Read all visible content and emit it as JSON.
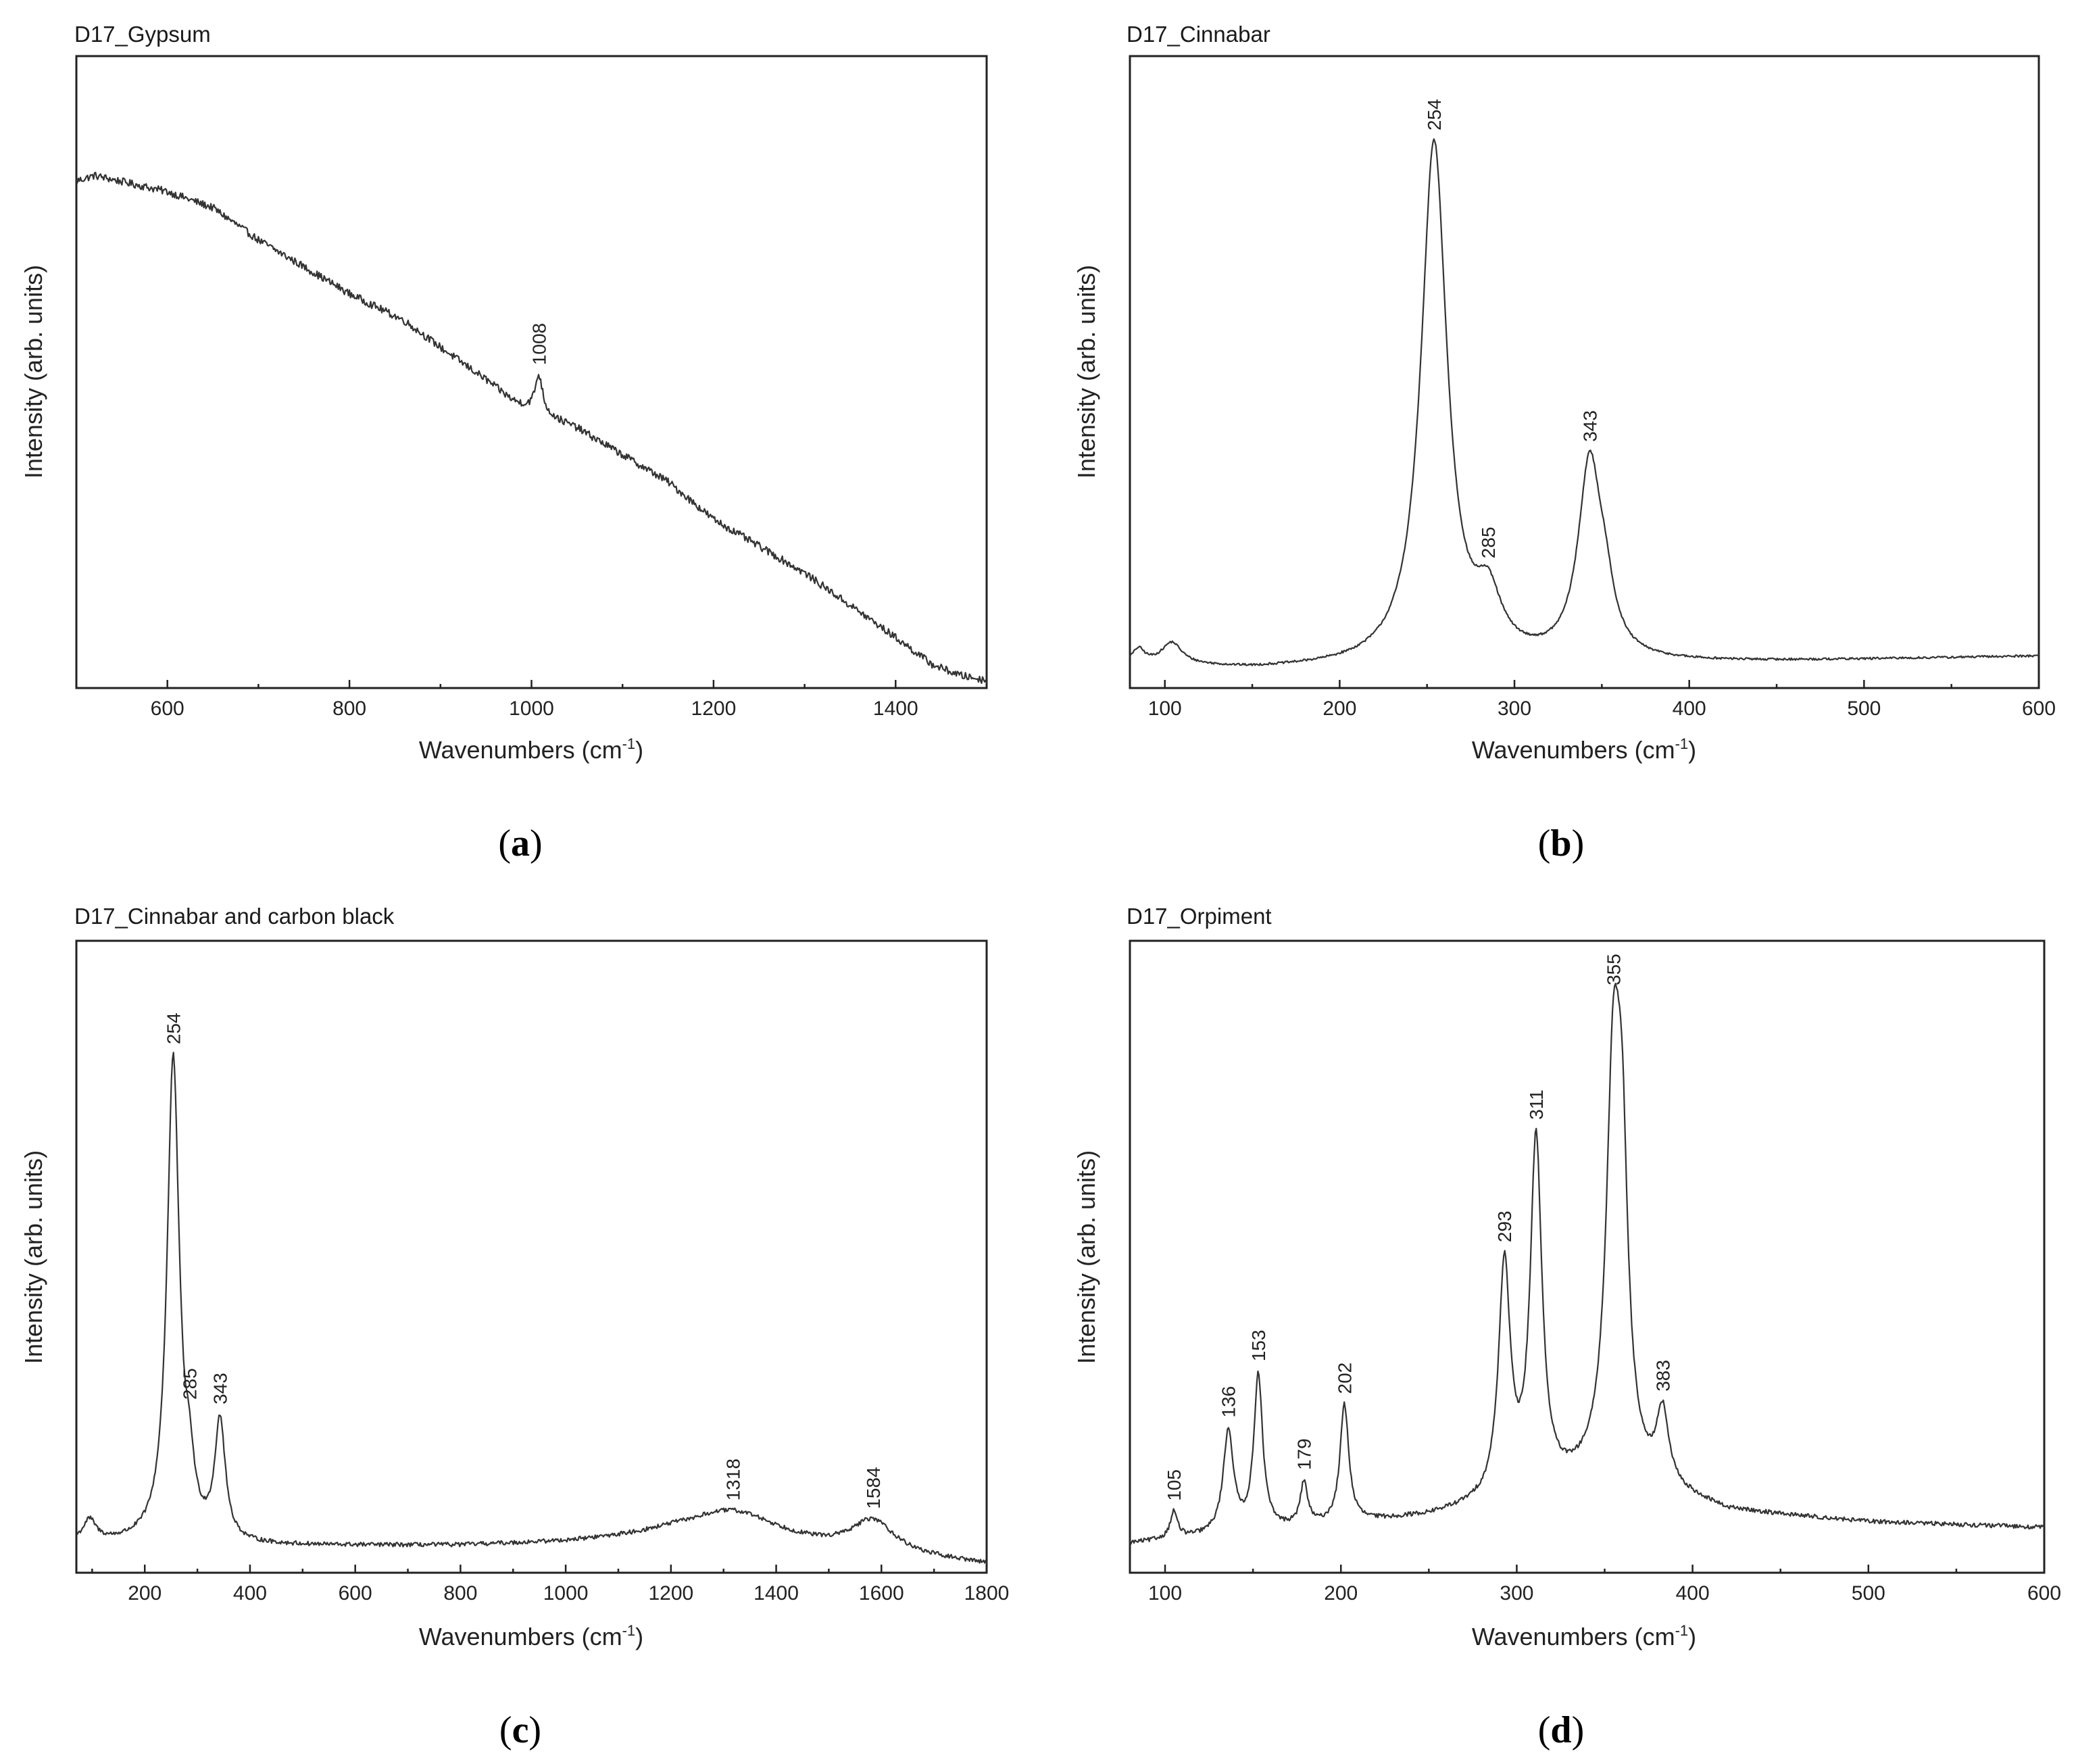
{
  "chart_data": [
    {
      "id": "a",
      "type": "line",
      "title": "D17_Gypsum",
      "xlabel": "Wavenumbers (cm",
      "xlabel_sup": "-1",
      "xlabel_end": ")",
      "ylabel": "Intensity (arb. units)",
      "xlim": [
        500,
        1500
      ],
      "xticks": [
        600,
        800,
        1000,
        1200,
        1400
      ],
      "caption": "a",
      "baseline": [
        [
          500,
          0.93
        ],
        [
          520,
          0.94
        ],
        [
          600,
          0.91
        ],
        [
          650,
          0.88
        ],
        [
          700,
          0.82
        ],
        [
          760,
          0.76
        ],
        [
          800,
          0.72
        ],
        [
          860,
          0.67
        ],
        [
          900,
          0.62
        ],
        [
          950,
          0.56
        ],
        [
          980,
          0.52
        ],
        [
          1000,
          0.505
        ],
        [
          1050,
          0.47
        ],
        [
          1100,
          0.42
        ],
        [
          1150,
          0.37
        ],
        [
          1200,
          0.3
        ],
        [
          1250,
          0.25
        ],
        [
          1300,
          0.2
        ],
        [
          1350,
          0.14
        ],
        [
          1400,
          0.08
        ],
        [
          1440,
          0.03
        ],
        [
          1470,
          0.01
        ],
        [
          1500,
          0.0
        ]
      ],
      "noise": 0.007,
      "peaks": [
        {
          "x": 1008,
          "h": 0.07,
          "w": 5,
          "label": "1008"
        }
      ]
    },
    {
      "id": "b",
      "type": "line",
      "title": "D17_Cinnabar",
      "xlabel": "Wavenumbers (cm",
      "xlabel_sup": "-1",
      "xlabel_end": ")",
      "ylabel": "Intensity (arb. units)",
      "xlim": [
        80,
        600
      ],
      "xticks": [
        100,
        200,
        300,
        400,
        500,
        600
      ],
      "caption": "b",
      "baseline": [
        [
          80,
          0.03
        ],
        [
          150,
          0.02
        ],
        [
          250,
          0.025
        ],
        [
          350,
          0.03
        ],
        [
          450,
          0.035
        ],
        [
          600,
          0.045
        ]
      ],
      "noise": 0.002,
      "peaks": [
        {
          "x": 85,
          "h": 0.025,
          "w": 4,
          "label": ""
        },
        {
          "x": 104,
          "h": 0.04,
          "w": 7,
          "label": ""
        },
        {
          "x": 254,
          "h": 0.97,
          "w": 9,
          "label": "254"
        },
        {
          "x": 285,
          "h": 0.1,
          "w": 9,
          "label": "285"
        },
        {
          "x": 343,
          "h": 0.36,
          "w": 8,
          "label": "343"
        },
        {
          "x": 352,
          "h": 0.08,
          "w": 6,
          "label": ""
        }
      ]
    },
    {
      "id": "c",
      "type": "line",
      "title": "D17_Cinnabar and carbon black",
      "xlabel": "Wavenumbers (cm",
      "xlabel_sup": "-1",
      "xlabel_end": ")",
      "ylabel": "Intensity (arb. units)",
      "xlim": [
        70,
        1800
      ],
      "xticks": [
        200,
        400,
        600,
        800,
        1000,
        1200,
        1400,
        1600,
        1800
      ],
      "caption": "c",
      "baseline": [
        [
          70,
          0.04
        ],
        [
          200,
          0.04
        ],
        [
          400,
          0.035
        ],
        [
          800,
          0.035
        ],
        [
          1000,
          0.04
        ],
        [
          1200,
          0.05
        ],
        [
          1800,
          0.0
        ]
      ],
      "noise": 0.004,
      "peaks": [
        {
          "x": 95,
          "h": 0.04,
          "w": 15,
          "label": ""
        },
        {
          "x": 254,
          "h": 0.9,
          "w": 14,
          "label": "254"
        },
        {
          "x": 285,
          "h": 0.09,
          "w": 10,
          "label": "285"
        },
        {
          "x": 343,
          "h": 0.22,
          "w": 12,
          "label": "343"
        },
        {
          "x": 1318,
          "h": 0.06,
          "w": 110,
          "label": "1318"
        },
        {
          "x": 1584,
          "h": 0.06,
          "w": 50,
          "label": "1584"
        }
      ]
    },
    {
      "id": "d",
      "type": "line",
      "title": "D17_Orpiment",
      "xlabel": "Wavenumbers (cm",
      "xlabel_sup": "-1",
      "xlabel_end": ")",
      "ylabel": "Intensity (arb. units)",
      "xlim": [
        80,
        600
      ],
      "xticks": [
        100,
        200,
        300,
        400,
        500,
        600
      ],
      "caption": "d",
      "baseline": [
        [
          80,
          0.04
        ],
        [
          150,
          0.06
        ],
        [
          250,
          0.09
        ],
        [
          300,
          0.12
        ],
        [
          340,
          0.15
        ],
        [
          380,
          0.14
        ],
        [
          420,
          0.1
        ],
        [
          500,
          0.08
        ],
        [
          600,
          0.07
        ]
      ],
      "noise": 0.004,
      "peaks": [
        {
          "x": 105,
          "h": 0.05,
          "w": 2.5,
          "label": "105"
        },
        {
          "x": 136,
          "h": 0.19,
          "w": 3.5,
          "label": "136"
        },
        {
          "x": 153,
          "h": 0.29,
          "w": 3,
          "label": "153"
        },
        {
          "x": 179,
          "h": 0.08,
          "w": 2.5,
          "label": "179"
        },
        {
          "x": 202,
          "h": 0.22,
          "w": 3,
          "label": "202"
        },
        {
          "x": 293,
          "h": 0.43,
          "w": 4,
          "label": "293"
        },
        {
          "x": 311,
          "h": 0.65,
          "w": 4,
          "label": "311"
        },
        {
          "x": 355,
          "h": 0.73,
          "w": 5,
          "label": "355"
        },
        {
          "x": 360,
          "h": 0.45,
          "w": 4,
          "label": ""
        },
        {
          "x": 383,
          "h": 0.13,
          "w": 4,
          "label": "383"
        }
      ]
    }
  ]
}
